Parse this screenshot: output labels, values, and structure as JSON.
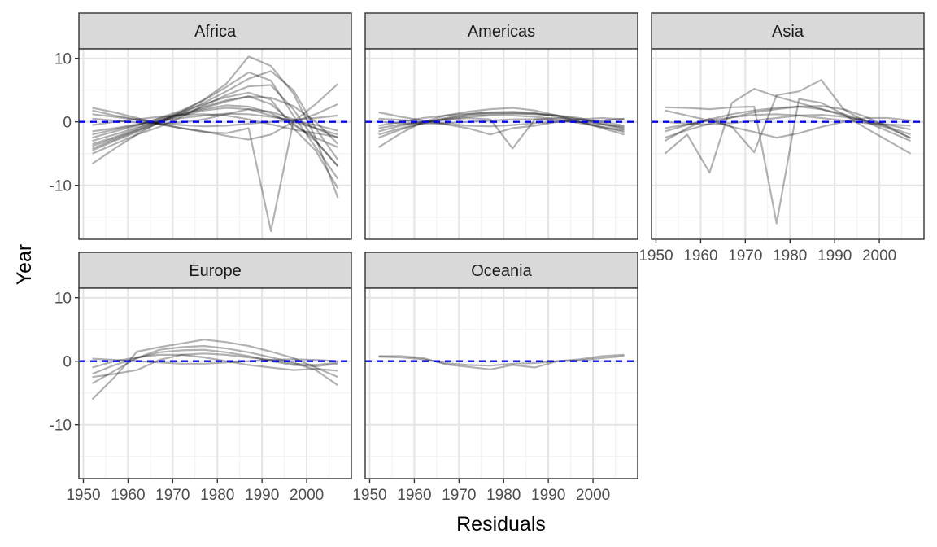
{
  "chart_data": {
    "type": "line",
    "title": "",
    "xlabel": "Residuals",
    "ylabel": "Year",
    "xlim": [
      1949,
      2010
    ],
    "ylim": [
      -18.5,
      11.5
    ],
    "x_ticks": [
      1950,
      1960,
      1970,
      1980,
      1990,
      2000
    ],
    "y_ticks": [
      -10,
      0,
      10
    ],
    "grid": true,
    "reference_line": {
      "y": 0,
      "color": "#0000ff",
      "style": "dashed"
    },
    "line_color": "#000000",
    "line_opacity": 0.3,
    "years": [
      1952,
      1957,
      1962,
      1967,
      1972,
      1977,
      1982,
      1987,
      1992,
      1997,
      2002,
      2007
    ],
    "panels": [
      {
        "name": "Africa",
        "series": [
          {
            "values": [
              -5.0,
              -3.5,
              -2.0,
              -0.8,
              0.8,
              2.6,
              4.2,
              5.6,
              5.8,
              2.0,
              -3.0,
              -7.0
            ]
          },
          {
            "values": [
              -4.2,
              -2.8,
              -1.4,
              0.0,
              1.4,
              3.0,
              4.8,
              6.8,
              8.0,
              5.0,
              -1.0,
              -6.0
            ]
          },
          {
            "values": [
              -3.5,
              -2.4,
              -1.1,
              0.3,
              1.6,
              2.8,
              3.9,
              4.6,
              3.5,
              -1.0,
              -4.5,
              -10.5
            ]
          },
          {
            "values": [
              -2.5,
              -1.5,
              -0.6,
              0.6,
              1.8,
              3.4,
              5.5,
              7.8,
              6.5,
              1.0,
              -4.0,
              -9.0
            ]
          },
          {
            "values": [
              -6.6,
              -4.2,
              -2.0,
              0.0,
              1.6,
              3.5,
              6.0,
              10.3,
              8.8,
              4.5,
              -2.5,
              -12.0
            ]
          },
          {
            "values": [
              2.2,
              1.5,
              0.6,
              -0.3,
              -1.0,
              -1.5,
              -2.2,
              -2.8,
              -2.0,
              0.0,
              2.8,
              6.0
            ]
          },
          {
            "values": [
              1.8,
              1.0,
              0.4,
              -0.4,
              -1.0,
              -1.6,
              -1.8,
              -1.0,
              -17.2,
              0.0,
              1.2,
              2.8
            ]
          },
          {
            "values": [
              -3.0,
              -2.0,
              -0.9,
              0.2,
              1.0,
              1.8,
              2.2,
              2.0,
              1.0,
              0.0,
              -1.0,
              -2.5
            ]
          },
          {
            "values": [
              -1.5,
              -1.0,
              -0.4,
              0.1,
              0.6,
              1.0,
              1.3,
              1.2,
              0.8,
              0.2,
              -0.5,
              -1.4
            ]
          },
          {
            "values": [
              1.2,
              0.8,
              0.3,
              -0.2,
              -0.5,
              -0.7,
              -0.6,
              -0.3,
              0.0,
              0.3,
              0.6,
              1.0
            ]
          },
          {
            "values": [
              -2.0,
              -1.2,
              -0.5,
              0.5,
              1.2,
              2.0,
              2.6,
              2.4,
              1.4,
              -0.5,
              -2.5,
              -4.0
            ]
          },
          {
            "values": [
              -4.5,
              -3.0,
              -1.6,
              -0.2,
              1.1,
              2.2,
              3.2,
              4.0,
              3.8,
              2.5,
              0.0,
              -3.5
            ]
          },
          {
            "values": [
              0.5,
              0.2,
              -0.1,
              -0.3,
              -0.1,
              0.4,
              1.2,
              2.0,
              1.6,
              0.4,
              -1.0,
              -2.0
            ]
          },
          {
            "values": [
              -3.8,
              -2.6,
              -1.3,
              0.0,
              1.3,
              2.4,
              3.4,
              4.0,
              2.8,
              -0.2,
              -3.0,
              -7.0
            ]
          },
          {
            "values": [
              -0.5,
              0.0,
              0.4,
              0.8,
              1.1,
              1.2,
              1.0,
              0.4,
              -0.4,
              -1.2,
              -1.8,
              -2.4
            ]
          }
        ]
      },
      {
        "name": "Americas",
        "series": [
          {
            "values": [
              -4.0,
              -1.8,
              0.0,
              1.0,
              1.6,
              2.0,
              2.2,
              1.8,
              1.0,
              0.0,
              -1.0,
              -2.0
            ]
          },
          {
            "values": [
              1.5,
              0.8,
              0.2,
              -0.3,
              -0.6,
              -0.7,
              -0.5,
              -0.2,
              0.0,
              0.0,
              0.2,
              0.5
            ]
          },
          {
            "values": [
              -2.5,
              -1.2,
              -0.2,
              0.6,
              1.2,
              1.5,
              1.6,
              1.4,
              0.8,
              0.0,
              -0.8,
              -1.6
            ]
          },
          {
            "values": [
              -1.0,
              -0.4,
              0.0,
              0.3,
              0.6,
              0.4,
              -4.2,
              0.4,
              0.6,
              0.4,
              0.0,
              -0.6
            ]
          },
          {
            "values": [
              0.5,
              0.3,
              0.0,
              -0.4,
              -1.0,
              -2.0,
              -1.0,
              -0.6,
              0.0,
              0.4,
              0.6,
              0.4
            ]
          },
          {
            "values": [
              -2.0,
              -1.0,
              -0.2,
              0.4,
              0.8,
              1.0,
              1.0,
              0.8,
              0.4,
              -0.2,
              -0.8,
              -1.4
            ]
          },
          {
            "values": [
              -1.5,
              -0.6,
              0.0,
              0.5,
              1.0,
              1.2,
              1.3,
              1.2,
              1.0,
              0.6,
              -0.2,
              -1.0
            ]
          },
          {
            "values": [
              0.0,
              -0.2,
              -0.3,
              -0.2,
              0.0,
              0.2,
              0.4,
              0.4,
              0.2,
              0.0,
              -0.4,
              -0.8
            ]
          },
          {
            "values": [
              -0.6,
              0.0,
              0.6,
              1.0,
              1.3,
              1.4,
              1.4,
              1.3,
              1.0,
              0.4,
              -0.4,
              -1.2
            ]
          }
        ]
      },
      {
        "name": "Asia",
        "series": [
          {
            "values": [
              -5.0,
              -2.0,
              -8.0,
              3.0,
              5.2,
              4.0,
              3.0,
              2.0,
              1.0,
              0.0,
              -1.5,
              -3.0
            ]
          },
          {
            "values": [
              2.3,
              2.2,
              2.0,
              2.3,
              2.4,
              -16.0,
              3.6,
              3.0,
              1.2,
              -1.0,
              -3.0,
              -5.0
            ]
          },
          {
            "values": [
              -3.0,
              -1.0,
              0.5,
              -0.8,
              -4.8,
              4.2,
              4.8,
              6.6,
              2.0,
              0.0,
              -1.0,
              -2.5
            ]
          },
          {
            "values": [
              1.8,
              1.0,
              0.2,
              -0.8,
              -1.6,
              -2.5,
              -1.8,
              -0.8,
              0.0,
              0.6,
              0.6,
              0.2
            ]
          },
          {
            "values": [
              -1.5,
              -0.5,
              0.4,
              1.2,
              1.8,
              2.2,
              2.4,
              2.0,
              1.2,
              0.2,
              -0.8,
              -2.0
            ]
          },
          {
            "values": [
              -2.5,
              -1.3,
              -0.3,
              0.7,
              1.5,
              2.0,
              2.4,
              2.5,
              2.0,
              0.8,
              -0.8,
              -2.6
            ]
          },
          {
            "values": [
              0.0,
              -0.3,
              -0.4,
              -0.2,
              0.2,
              0.6,
              1.0,
              1.1,
              0.8,
              0.2,
              -0.5,
              -1.2
            ]
          },
          {
            "values": [
              -1.0,
              -0.4,
              0.2,
              0.7,
              1.1,
              1.2,
              1.0,
              0.6,
              0.2,
              -0.2,
              -0.4,
              -0.6
            ]
          }
        ]
      },
      {
        "name": "Europe",
        "series": [
          {
            "values": [
              -6.0,
              -2.5,
              1.5,
              2.2,
              2.8,
              3.4,
              3.0,
              2.4,
              1.5,
              0.5,
              -1.0,
              -2.5
            ]
          },
          {
            "values": [
              -3.5,
              -1.5,
              0.5,
              1.8,
              2.2,
              2.4,
              2.0,
              1.4,
              0.6,
              -0.2,
              -1.4,
              -3.8
            ]
          },
          {
            "values": [
              -2.0,
              -0.6,
              0.5,
              1.4,
              1.7,
              1.8,
              1.4,
              0.8,
              0.0,
              -0.6,
              -0.8,
              -0.4
            ]
          },
          {
            "values": [
              0.4,
              0.2,
              0.0,
              -0.2,
              -0.4,
              -0.4,
              -0.2,
              0.0,
              0.2,
              0.3,
              0.2,
              0.0
            ]
          },
          {
            "values": [
              -1.0,
              0.0,
              0.6,
              1.0,
              1.0,
              0.6,
              0.0,
              -0.6,
              -1.0,
              -1.4,
              -1.2,
              -1.5
            ]
          },
          {
            "values": [
              -2.5,
              -2.0,
              -1.4,
              0.2,
              1.0,
              1.2,
              1.0,
              0.6,
              0.2,
              -0.4,
              -0.6,
              -0.2
            ]
          }
        ]
      },
      {
        "name": "Oceania",
        "series": [
          {
            "values": [
              0.8,
              0.8,
              0.5,
              -0.5,
              -0.9,
              -1.3,
              -0.6,
              -1.0,
              0.0,
              0.3,
              0.8,
              1.0
            ]
          },
          {
            "values": [
              0.7,
              0.6,
              0.3,
              -0.3,
              -0.6,
              -0.7,
              -0.4,
              -0.3,
              0.0,
              0.1,
              0.5,
              0.8
            ]
          }
        ]
      }
    ]
  }
}
